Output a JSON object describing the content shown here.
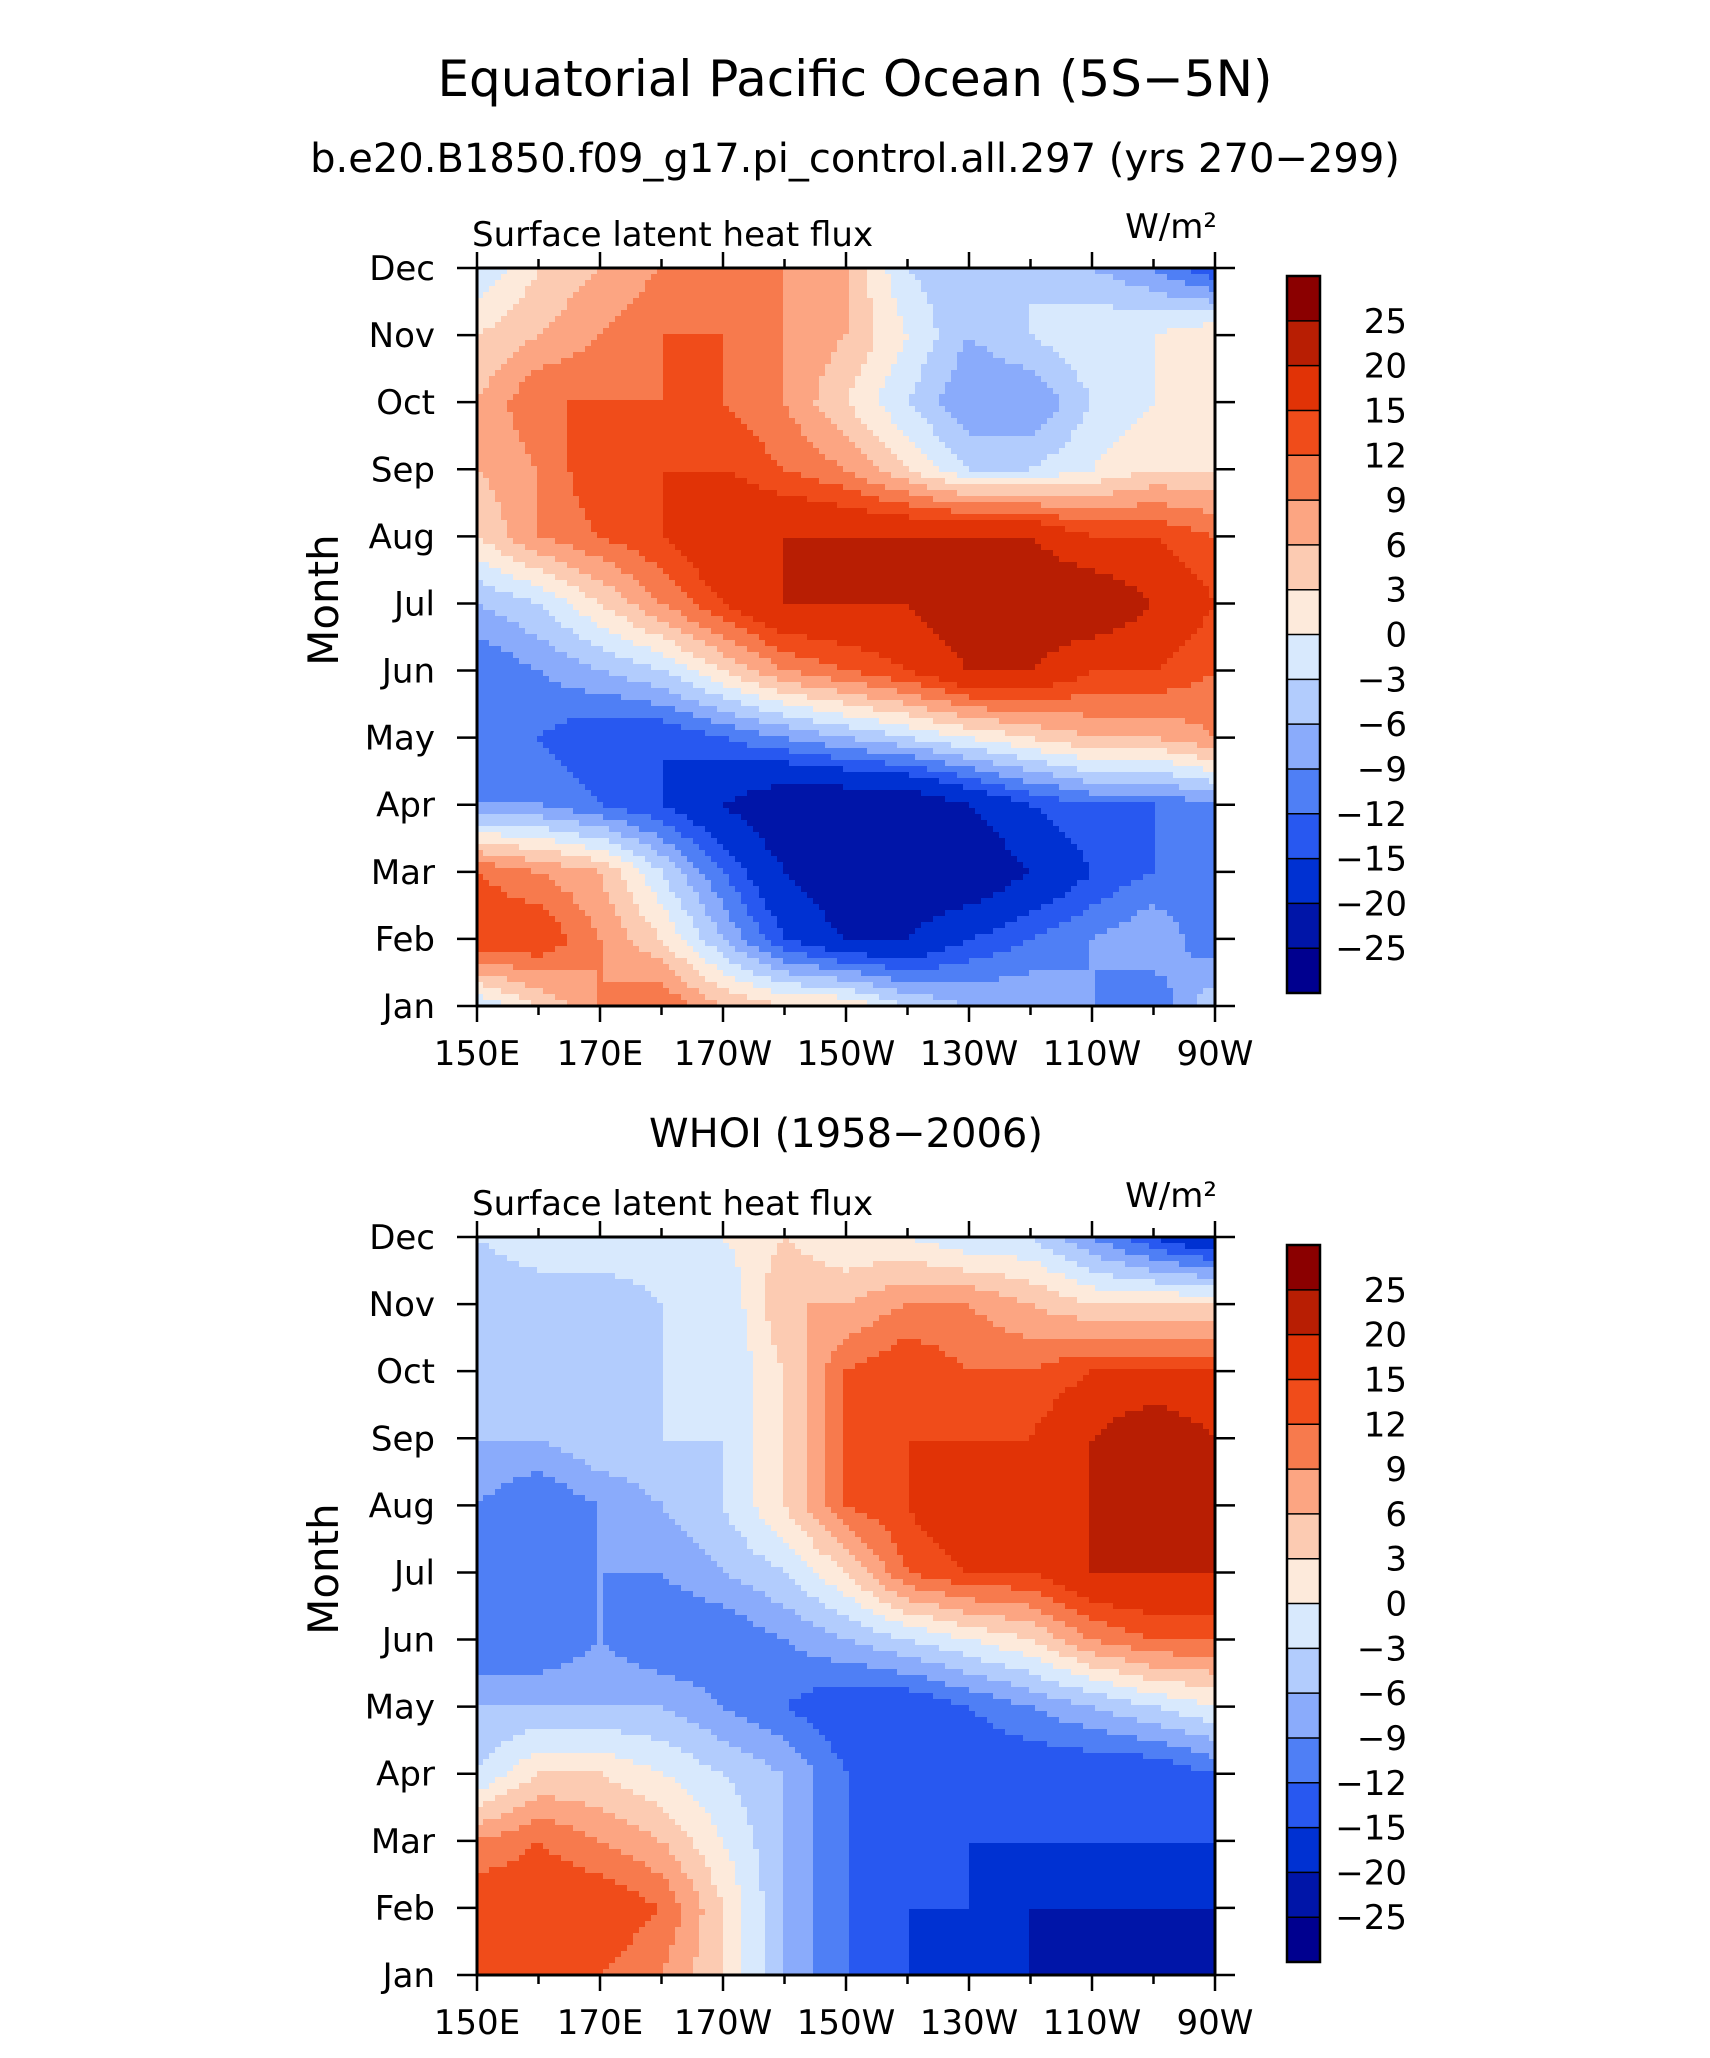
{
  "figure": {
    "title": "Equatorial Pacific Ocean (5S−5N)",
    "subtitle": "b.e20.B1850.f09_g17.pi_control.all.297 (yrs 270−299)"
  },
  "chart_data": [
    {
      "type": "heatmap",
      "panel_title": "",
      "variable_label": "Surface latent heat flux",
      "units_label": "W/m²",
      "ylabel": "Month",
      "xlabel": "",
      "x_labels": [
        "150E",
        "170E",
        "170W",
        "150W",
        "130W",
        "110W",
        "90W"
      ],
      "x_values": [
        150,
        170,
        190,
        210,
        230,
        250,
        270
      ],
      "y_labels": [
        "Jan",
        "Feb",
        "Mar",
        "Apr",
        "May",
        "Jun",
        "Jul",
        "Aug",
        "Sep",
        "Oct",
        "Nov",
        "Dec"
      ],
      "xlim": [
        150,
        270
      ],
      "ylim": [
        1,
        12
      ],
      "z": [
        [
          -3,
          3,
          9,
          12,
          6,
          3,
          3,
          -3,
          -6,
          -6,
          -9,
          -12,
          -3
        ],
        [
          15,
          15,
          9,
          3,
          -6,
          -15,
          -20,
          -20,
          -15,
          -12,
          -9,
          -6,
          -12
        ],
        [
          12,
          9,
          6,
          -3,
          -12,
          -20,
          -25,
          -25,
          -25,
          -20,
          -15,
          -12,
          -12
        ],
        [
          -9,
          -9,
          -12,
          -15,
          -20,
          -25,
          -25,
          -25,
          -20,
          -15,
          -12,
          -12,
          -9
        ],
        [
          -12,
          -12,
          -15,
          -15,
          -12,
          -9,
          -6,
          -3,
          0,
          3,
          6,
          6,
          9
        ],
        [
          -12,
          -9,
          -6,
          -3,
          3,
          9,
          12,
          15,
          20,
          20,
          15,
          15,
          12
        ],
        [
          -6,
          -3,
          3,
          9,
          15,
          20,
          20,
          20,
          25,
          25,
          25,
          20,
          15
        ],
        [
          3,
          9,
          12,
          15,
          20,
          20,
          20,
          20,
          20,
          20,
          15,
          15,
          12
        ],
        [
          6,
          9,
          15,
          15,
          15,
          12,
          9,
          3,
          -3,
          -3,
          0,
          3,
          3
        ],
        [
          6,
          12,
          12,
          12,
          12,
          9,
          3,
          -3,
          -9,
          -9,
          -3,
          0,
          0
        ],
        [
          3,
          6,
          9,
          12,
          12,
          9,
          6,
          0,
          -6,
          -3,
          0,
          0,
          3
        ],
        [
          -3,
          3,
          6,
          9,
          12,
          9,
          6,
          -3,
          -6,
          -3,
          -6,
          -9,
          -15
        ]
      ]
    },
    {
      "type": "heatmap",
      "panel_title": "WHOI (1958−2006)",
      "variable_label": "Surface latent heat flux",
      "units_label": "W/m²",
      "ylabel": "Month",
      "xlabel": "",
      "x_labels": [
        "150E",
        "170E",
        "170W",
        "150W",
        "130W",
        "110W",
        "90W"
      ],
      "x_values": [
        150,
        170,
        190,
        210,
        230,
        250,
        270
      ],
      "y_labels": [
        "Jan",
        "Feb",
        "Mar",
        "Apr",
        "May",
        "Jun",
        "Jul",
        "Aug",
        "Sep",
        "Oct",
        "Nov",
        "Dec"
      ],
      "xlim": [
        150,
        270
      ],
      "ylim": [
        1,
        12
      ],
      "z": [
        [
          12,
          15,
          12,
          9,
          3,
          -6,
          -12,
          -15,
          -20,
          -20,
          -25,
          -25,
          -25
        ],
        [
          15,
          15,
          15,
          12,
          3,
          -6,
          -12,
          -15,
          -15,
          -20,
          -20,
          -20,
          -20
        ],
        [
          9,
          12,
          9,
          6,
          0,
          -6,
          -12,
          -12,
          -15,
          -15,
          -15,
          -15,
          -15
        ],
        [
          -3,
          3,
          3,
          0,
          -3,
          -6,
          -12,
          -15,
          -15,
          -15,
          -15,
          -15,
          -12
        ],
        [
          -6,
          -6,
          -6,
          -6,
          -9,
          -12,
          -15,
          -15,
          -12,
          -9,
          -6,
          -3,
          0
        ],
        [
          -12,
          -12,
          -9,
          -12,
          -12,
          -9,
          -6,
          -3,
          0,
          3,
          9,
          12,
          12
        ],
        [
          -12,
          -12,
          -9,
          -9,
          -6,
          -3,
          3,
          12,
          15,
          15,
          20,
          20,
          20
        ],
        [
          -9,
          -12,
          -9,
          -6,
          -3,
          3,
          12,
          15,
          20,
          15,
          20,
          20,
          20
        ],
        [
          -6,
          -6,
          -3,
          -3,
          -3,
          3,
          12,
          15,
          15,
          15,
          20,
          25,
          20
        ],
        [
          -6,
          -3,
          -6,
          -3,
          -3,
          3,
          12,
          15,
          12,
          12,
          15,
          15,
          15
        ],
        [
          -6,
          -6,
          -6,
          -3,
          -3,
          6,
          6,
          9,
          9,
          6,
          3,
          3,
          3
        ],
        [
          -3,
          0,
          0,
          0,
          0,
          3,
          0,
          0,
          -3,
          -3,
          -9,
          -15,
          -20
        ]
      ]
    }
  ],
  "colorbar": {
    "levels": [
      -25,
      -20,
      -15,
      -12,
      -9,
      -6,
      -3,
      0,
      3,
      6,
      9,
      12,
      15,
      20,
      25
    ],
    "labels": [
      "25",
      "20",
      "15",
      "12",
      "9",
      "6",
      "3",
      "0",
      "−3",
      "−6",
      "−9",
      "−12",
      "−15",
      "−20",
      "−25"
    ],
    "colors": [
      "#00008f",
      "#0015a8",
      "#0031d2",
      "#2858f0",
      "#4f7ff5",
      "#8aabfb",
      "#b2ccfd",
      "#d8e9fd",
      "#fdeadb",
      "#fccbb2",
      "#fca582",
      "#f77a4d",
      "#f04c1a",
      "#e13306",
      "#b81e03",
      "#8b0000"
    ]
  }
}
